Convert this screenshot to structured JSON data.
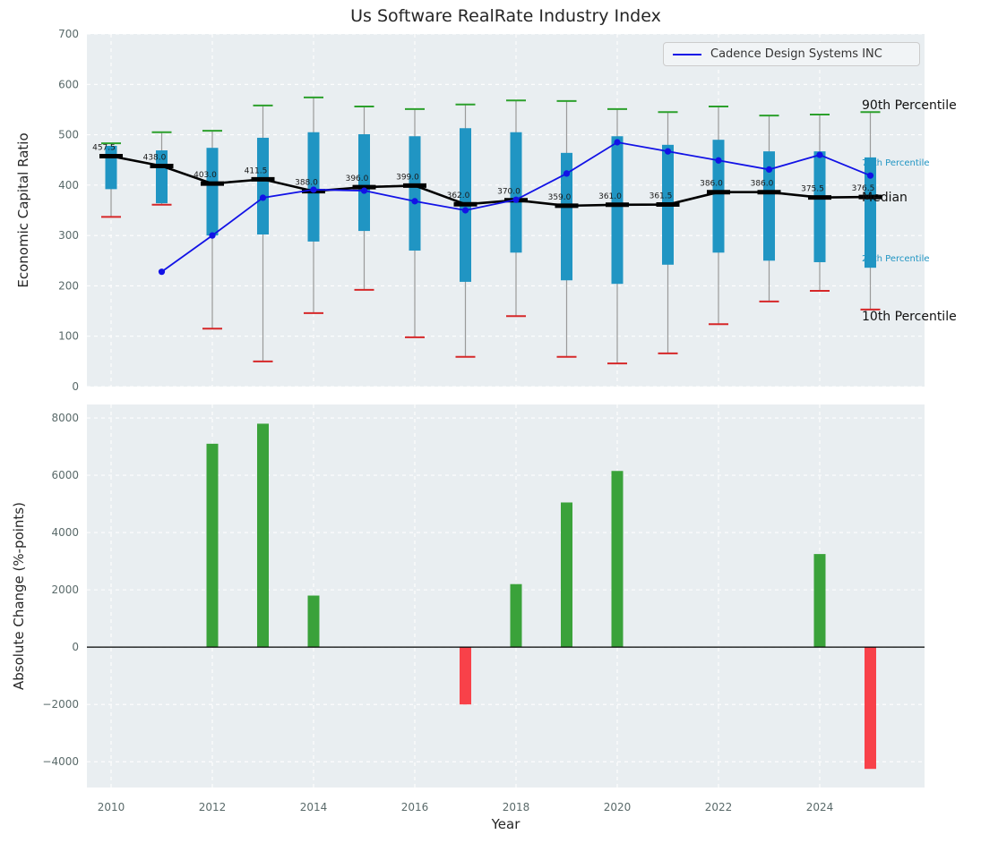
{
  "figure": {
    "title": "Us Software RealRate Industry Index",
    "legend": {
      "label": "Cadence Design Systems INC"
    },
    "right_labels": {
      "p90": "90th Percentile",
      "p75": "75th Percentile",
      "median": "Median",
      "p25": "25th Percentile",
      "p10": "10th Percentile"
    }
  },
  "chart_data": [
    {
      "type": "boxplot",
      "title": "Us Software RealRate Industry Index",
      "ylabel": "Economic Capital Ratio",
      "ylim": [
        0,
        700
      ],
      "yticks": [
        0,
        100,
        200,
        300,
        400,
        500,
        600,
        700
      ],
      "xtick_years": [
        2010,
        2012,
        2014,
        2016,
        2018,
        2020,
        2022,
        2024
      ],
      "grid": true,
      "legend_position": "upper right",
      "years": [
        2010,
        2011,
        2012,
        2013,
        2014,
        2015,
        2016,
        2017,
        2018,
        2019,
        2020,
        2021,
        2022,
        2023,
        2024,
        2025
      ],
      "median": [
        457.5,
        438.0,
        403.0,
        411.5,
        388.0,
        396.0,
        399.0,
        362.0,
        370.0,
        359.0,
        361.0,
        361.5,
        386.0,
        386.0,
        375.5,
        376.5
      ],
      "p75": [
        478,
        469,
        474,
        494,
        505,
        501,
        497,
        513,
        505,
        464,
        497,
        480,
        490,
        467,
        467,
        455
      ],
      "p25": [
        392,
        364,
        300,
        302,
        288,
        309,
        270,
        208,
        266,
        211,
        204,
        242,
        266,
        250,
        247,
        236
      ],
      "p90": [
        483,
        505,
        508,
        558,
        574,
        556,
        551,
        560,
        568,
        567,
        551,
        545,
        556,
        538,
        540,
        545
      ],
      "p10": [
        337,
        361,
        115,
        50,
        146,
        192,
        98,
        59,
        140,
        59,
        46,
        66,
        124,
        169,
        190,
        153
      ],
      "series": [
        {
          "name": "Cadence Design Systems INC",
          "values": [
            null,
            228,
            300,
            375,
            391,
            389,
            368,
            350,
            371,
            423,
            485,
            467,
            449,
            431,
            460,
            419
          ]
        }
      ],
      "colors": {
        "box": "#2095c3",
        "p90_cap": "#2ca02c",
        "p10_cap": "#d62728",
        "median": "#000000",
        "whisker": "#9a9a9a",
        "company_line": "#1212e6",
        "axes_bg": "#e9eef1",
        "grid": "#ffffff",
        "tick": "#5a6a6a",
        "label": "#262626",
        "median_label": "#1a1a1a"
      }
    },
    {
      "type": "bar",
      "ylabel": "Absolute Change (%-points)",
      "xlabel": "Year",
      "ylim": [
        -4900,
        8470
      ],
      "yticks": [
        -4000,
        -2000,
        0,
        2000,
        4000,
        6000,
        8000
      ],
      "xtick_years": [
        2010,
        2012,
        2014,
        2016,
        2018,
        2020,
        2022,
        2024
      ],
      "grid": true,
      "years": [
        2010,
        2011,
        2012,
        2013,
        2014,
        2015,
        2016,
        2017,
        2018,
        2019,
        2020,
        2021,
        2022,
        2023,
        2024,
        2025
      ],
      "values": [
        0,
        0,
        7100,
        7800,
        1800,
        0,
        0,
        -2000,
        2200,
        5050,
        6150,
        0,
        0,
        0,
        3250,
        -4250
      ],
      "colors": {
        "positive": "#3aa23a",
        "negative": "#f84149"
      }
    }
  ]
}
